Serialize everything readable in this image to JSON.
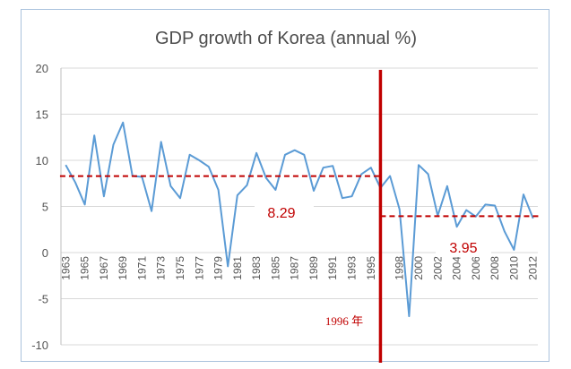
{
  "chart_data": {
    "type": "line",
    "title": "GDP growth of Korea (annual %)",
    "xlabel": "",
    "ylabel": "",
    "ylim": [
      -10,
      20
    ],
    "yticks": [
      20,
      15,
      10,
      5,
      0,
      -5,
      -10
    ],
    "xtick_labels": [
      "1963",
      "1965",
      "1967",
      "1969",
      "1971",
      "1973",
      "1975",
      "1977",
      "1979",
      "1981",
      "1983",
      "1985",
      "1987",
      "1989",
      "1991",
      "1993",
      "1995",
      "1998",
      "2000",
      "2002",
      "2004",
      "2006",
      "2008",
      "2010",
      "2012"
    ],
    "grid": "horizontal",
    "series": [
      {
        "name": "GDP growth (annual %)",
        "color": "#5b9bd5",
        "x": [
          1963,
          1964,
          1965,
          1966,
          1967,
          1968,
          1969,
          1970,
          1971,
          1972,
          1973,
          1974,
          1975,
          1976,
          1977,
          1978,
          1979,
          1980,
          1981,
          1982,
          1983,
          1984,
          1985,
          1986,
          1987,
          1988,
          1989,
          1990,
          1991,
          1992,
          1993,
          1994,
          1995,
          1996,
          1997,
          1998,
          1999,
          2000,
          2001,
          2002,
          2003,
          2004,
          2005,
          2006,
          2007,
          2008,
          2009,
          2010,
          2011,
          2012
        ],
        "values": [
          9.5,
          7.6,
          5.2,
          12.7,
          6.1,
          11.7,
          14.1,
          8.3,
          8.2,
          4.5,
          12.0,
          7.2,
          5.9,
          10.6,
          10.0,
          9.3,
          6.8,
          -1.5,
          6.2,
          7.3,
          10.8,
          8.1,
          6.8,
          10.6,
          11.1,
          10.6,
          6.7,
          9.2,
          9.4,
          5.9,
          6.1,
          8.5,
          9.2,
          7.0,
          8.3,
          4.7,
          -6.9,
          9.5,
          8.5,
          4.0,
          7.2,
          2.8,
          4.6,
          3.9,
          5.2,
          5.1,
          2.3,
          0.3,
          6.3,
          3.7
        ]
      }
    ],
    "reference_lines": [
      {
        "type": "horizontal",
        "value": 8.29,
        "label": "8.29",
        "from_x": 1962.4,
        "to_x": 1996,
        "color": "#c00000",
        "style": "dashed"
      },
      {
        "type": "horizontal",
        "value": 3.95,
        "label": "3.95",
        "from_x": 1996,
        "to_x": 2012.6,
        "color": "#c00000",
        "style": "dashed"
      },
      {
        "type": "vertical",
        "value": 1996,
        "label": "1996 年",
        "color": "#c00000",
        "style": "solid"
      }
    ]
  }
}
